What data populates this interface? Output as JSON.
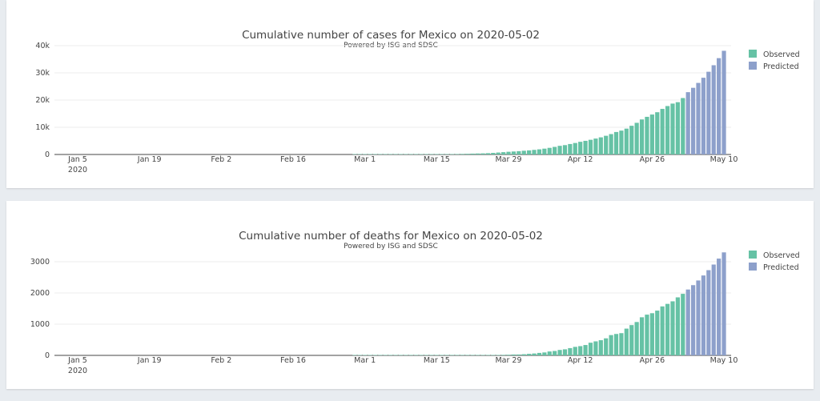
{
  "chart_data": [
    {
      "type": "bar",
      "title": "Cumulative number of cases for Mexico on 2020-05-02",
      "subtitle": "Powered by ISG and SDSC",
      "xlabel": "",
      "ylabel": "",
      "x_range": [
        "2020-01-01",
        "2020-05-11"
      ],
      "x_ticks": [
        {
          "date": "2020-01-05",
          "label": "Jan 5",
          "sublabel": "2020"
        },
        {
          "date": "2020-01-19",
          "label": "Jan 19"
        },
        {
          "date": "2020-02-02",
          "label": "Feb 2"
        },
        {
          "date": "2020-02-16",
          "label": "Feb 16"
        },
        {
          "date": "2020-03-01",
          "label": "Mar 1"
        },
        {
          "date": "2020-03-15",
          "label": "Mar 15"
        },
        {
          "date": "2020-03-29",
          "label": "Mar 29"
        },
        {
          "date": "2020-04-12",
          "label": "Apr 12"
        },
        {
          "date": "2020-04-26",
          "label": "Apr 26"
        },
        {
          "date": "2020-05-10",
          "label": "May 10"
        }
      ],
      "y_ticks": [
        {
          "v": 0,
          "label": "0"
        },
        {
          "v": 10000,
          "label": "10k"
        },
        {
          "v": 20000,
          "label": "20k"
        },
        {
          "v": 30000,
          "label": "30k"
        },
        {
          "v": 40000,
          "label": "40k"
        }
      ],
      "ylim": [
        0,
        40000
      ],
      "grid": true,
      "legend_position": "top-right",
      "start_date": "2020-02-28",
      "series": [
        {
          "name": "Observed",
          "color": "#66c2a5",
          "values": [
            1,
            4,
            5,
            5,
            5,
            5,
            5,
            6,
            6,
            7,
            7,
            7,
            8,
            12,
            26,
            41,
            53,
            82,
            93,
            118,
            164,
            203,
            251,
            316,
            367,
            405,
            475,
            585,
            717,
            848,
            993,
            1094,
            1215,
            1378,
            1510,
            1688,
            1890,
            2143,
            2439,
            2785,
            3181,
            3441,
            3844,
            4219,
            4661,
            5014,
            5399,
            5847,
            6297,
            6875,
            7497,
            8261,
            8772,
            9501,
            10544,
            11633,
            12872,
            13842,
            14677,
            15529,
            16752,
            17799,
            18700,
            19224,
            20739
          ]
        },
        {
          "name": "Predicted",
          "color": "#8da0cb",
          "values": [
            22900,
            24500,
            26300,
            28200,
            30400,
            32800,
            35400,
            38100
          ]
        }
      ]
    },
    {
      "type": "bar",
      "title": "Cumulative number of deaths for Mexico on 2020-05-02",
      "subtitle": "Powered by ISG and SDSC",
      "xlabel": "",
      "ylabel": "",
      "x_range": [
        "2020-01-01",
        "2020-05-11"
      ],
      "x_ticks": [
        {
          "date": "2020-01-05",
          "label": "Jan 5",
          "sublabel": "2020"
        },
        {
          "date": "2020-01-19",
          "label": "Jan 19"
        },
        {
          "date": "2020-02-02",
          "label": "Feb 2"
        },
        {
          "date": "2020-02-16",
          "label": "Feb 16"
        },
        {
          "date": "2020-03-01",
          "label": "Mar 1"
        },
        {
          "date": "2020-03-15",
          "label": "Mar 15"
        },
        {
          "date": "2020-03-29",
          "label": "Mar 29"
        },
        {
          "date": "2020-04-12",
          "label": "Apr 12"
        },
        {
          "date": "2020-04-26",
          "label": "Apr 26"
        },
        {
          "date": "2020-05-10",
          "label": "May 10"
        }
      ],
      "y_ticks": [
        {
          "v": 0,
          "label": "0"
        },
        {
          "v": 1000,
          "label": "1000"
        },
        {
          "v": 2000,
          "label": "2000"
        },
        {
          "v": 3000,
          "label": "3000"
        }
      ],
      "ylim": [
        0,
        3500
      ],
      "grid": true,
      "legend_position": "top-right",
      "start_date": "2020-02-28",
      "series": [
        {
          "name": "Observed",
          "color": "#66c2a5",
          "values": [
            0,
            0,
            0,
            0,
            0,
            0,
            0,
            0,
            0,
            0,
            0,
            0,
            0,
            0,
            0,
            0,
            0,
            0,
            0,
            0,
            1,
            2,
            2,
            2,
            4,
            5,
            6,
            8,
            12,
            16,
            20,
            28,
            29,
            37,
            50,
            60,
            79,
            94,
            125,
            141,
            174,
            194,
            233,
            273,
            296,
            332,
            406,
            449,
            486,
            546,
            650,
            686,
            712,
            857,
            970,
            1069,
            1221,
            1305,
            1351,
            1434,
            1569,
            1650,
            1732,
            1859,
            1972
          ]
        },
        {
          "name": "Predicted",
          "color": "#8da0cb",
          "values": [
            2110,
            2250,
            2400,
            2560,
            2730,
            2910,
            3100,
            3300
          ]
        }
      ]
    }
  ]
}
